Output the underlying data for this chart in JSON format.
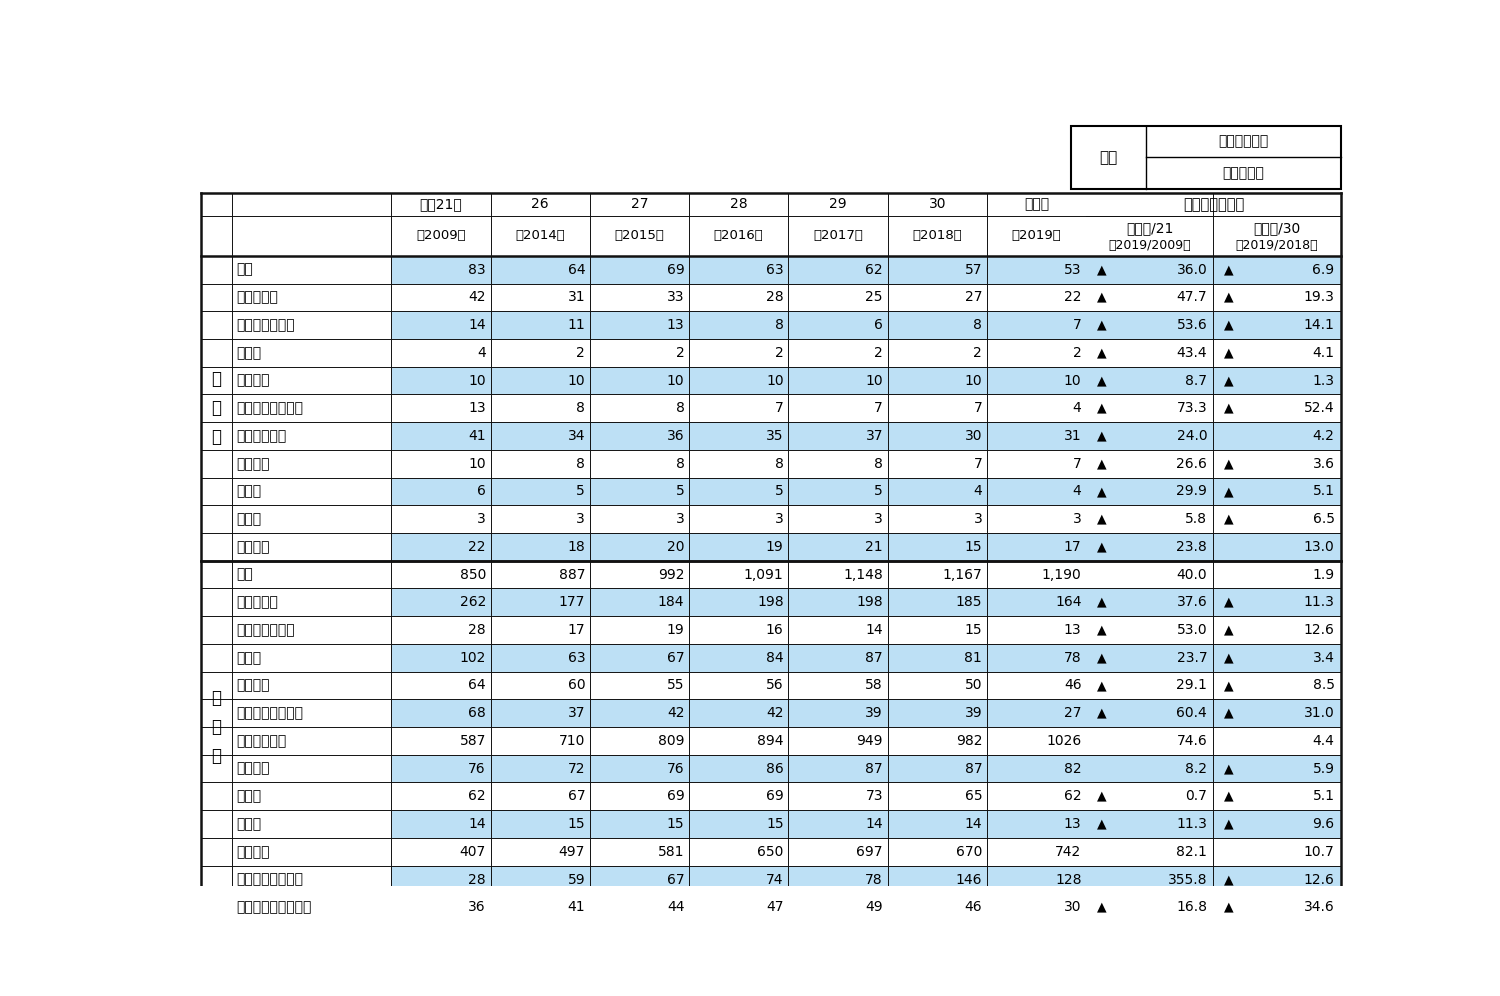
{
  "rows": [
    {
      "label": "合計",
      "section": "生産量",
      "indent": 0,
      "values": [
        "83",
        "64",
        "69",
        "63",
        "62",
        "57",
        "53"
      ],
      "chg1_tri": true,
      "chg1v": "36.0",
      "chg2_tri": true,
      "chg2v": "6.9",
      "bg": "light"
    },
    {
      "label": "内水面漁業",
      "section": "生産量",
      "indent": 0,
      "values": [
        "42",
        "31",
        "33",
        "28",
        "25",
        "27",
        "22"
      ],
      "chg1_tri": true,
      "chg1v": "47.7",
      "chg2_tri": true,
      "chg2v": "19.3",
      "bg": "white"
    },
    {
      "label": "さけ・ます類",
      "section": "生産量",
      "indent": 1,
      "values": [
        "14",
        "11",
        "13",
        "8",
        "6",
        "8",
        "7"
      ],
      "chg1_tri": true,
      "chg1v": "53.6",
      "chg2_tri": true,
      "chg2v": "14.1",
      "bg": "light"
    },
    {
      "label": "あゆ",
      "section": "生産量",
      "indent": 1,
      "values": [
        "4",
        "2",
        "2",
        "2",
        "2",
        "2",
        "2"
      ],
      "chg1_tri": true,
      "chg1v": "43.4",
      "chg2_tri": true,
      "chg2v": "4.1",
      "bg": "white"
    },
    {
      "label": "しじみ",
      "section": "生産量",
      "indent": 1,
      "values": [
        "10",
        "10",
        "10",
        "10",
        "10",
        "10",
        "10"
      ],
      "chg1_tri": true,
      "chg1v": "8.7",
      "chg2_tri": true,
      "chg2v": "1.3",
      "bg": "light"
    },
    {
      "label": "上記以外の魚種",
      "section": "生産量",
      "indent": 1,
      "values": [
        "13",
        "8",
        "8",
        "7",
        "7",
        "7",
        "4"
      ],
      "chg1_tri": true,
      "chg1v": "73.3",
      "chg2_tri": true,
      "chg2v": "52.4",
      "bg": "white"
    },
    {
      "label": "内水面養殖業",
      "section": "生産量",
      "indent": 0,
      "values": [
        "41",
        "34",
        "36",
        "35",
        "37",
        "30",
        "31"
      ],
      "chg1_tri": true,
      "chg1v": "24.0",
      "chg2_tri": false,
      "chg2v": "4.2",
      "bg": "light"
    },
    {
      "label": "ます類",
      "section": "生産量",
      "indent": 1,
      "values": [
        "10",
        "8",
        "8",
        "8",
        "8",
        "7",
        "7"
      ],
      "chg1_tri": true,
      "chg1v": "26.6",
      "chg2_tri": true,
      "chg2v": "3.6",
      "bg": "white"
    },
    {
      "label": "あゆ",
      "section": "生産量",
      "indent": 1,
      "values": [
        "6",
        "5",
        "5",
        "5",
        "5",
        "4",
        "4"
      ],
      "chg1_tri": true,
      "chg1v": "29.9",
      "chg2_tri": true,
      "chg2v": "5.1",
      "bg": "light"
    },
    {
      "label": "こい",
      "section": "生産量",
      "indent": 1,
      "values": [
        "3",
        "3",
        "3",
        "3",
        "3",
        "3",
        "3"
      ],
      "chg1_tri": true,
      "chg1v": "5.8",
      "chg2_tri": true,
      "chg2v": "6.5",
      "bg": "white"
    },
    {
      "label": "うなぎ",
      "section": "生産量",
      "indent": 1,
      "values": [
        "22",
        "18",
        "20",
        "19",
        "21",
        "15",
        "17"
      ],
      "chg1_tri": true,
      "chg1v": "23.8",
      "chg2_tri": false,
      "chg2v": "13.0",
      "bg": "light"
    },
    {
      "label": "合計",
      "section": "産出額",
      "indent": 0,
      "values": [
        "850",
        "887",
        "992",
        "1,091",
        "1,148",
        "1,167",
        "1,190"
      ],
      "chg1_tri": false,
      "chg1v": "40.0",
      "chg2_tri": false,
      "chg2v": "1.9",
      "bg": "white",
      "thick_top": true
    },
    {
      "label": "内水面漁業",
      "section": "産出額",
      "indent": 0,
      "values": [
        "262",
        "177",
        "184",
        "198",
        "198",
        "185",
        "164"
      ],
      "chg1_tri": true,
      "chg1v": "37.6",
      "chg2_tri": true,
      "chg2v": "11.3",
      "bg": "light"
    },
    {
      "label": "さけ・ます類",
      "section": "産出額",
      "indent": 1,
      "values": [
        "28",
        "17",
        "19",
        "16",
        "14",
        "15",
        "13"
      ],
      "chg1_tri": true,
      "chg1v": "53.0",
      "chg2_tri": true,
      "chg2v": "12.6",
      "bg": "white"
    },
    {
      "label": "あゆ",
      "section": "産出額",
      "indent": 1,
      "values": [
        "102",
        "63",
        "67",
        "84",
        "87",
        "81",
        "78"
      ],
      "chg1_tri": true,
      "chg1v": "23.7",
      "chg2_tri": true,
      "chg2v": "3.4",
      "bg": "light"
    },
    {
      "label": "しじみ",
      "section": "産出額",
      "indent": 1,
      "values": [
        "64",
        "60",
        "55",
        "56",
        "58",
        "50",
        "46"
      ],
      "chg1_tri": true,
      "chg1v": "29.1",
      "chg2_tri": true,
      "chg2v": "8.5",
      "bg": "white"
    },
    {
      "label": "上記以外の魚種",
      "section": "産出額",
      "indent": 1,
      "values": [
        "68",
        "37",
        "42",
        "42",
        "39",
        "39",
        "27"
      ],
      "chg1_tri": true,
      "chg1v": "60.4",
      "chg2_tri": true,
      "chg2v": "31.0",
      "bg": "light"
    },
    {
      "label": "内水面養殖業",
      "section": "産出額",
      "indent": 0,
      "values": [
        "587",
        "710",
        "809",
        "894",
        "949",
        "982",
        "1026"
      ],
      "chg1_tri": false,
      "chg1v": "74.6",
      "chg2_tri": false,
      "chg2v": "4.4",
      "bg": "white"
    },
    {
      "label": "ます類",
      "section": "産出額",
      "indent": 1,
      "values": [
        "76",
        "72",
        "76",
        "86",
        "87",
        "87",
        "82"
      ],
      "chg1_tri": false,
      "chg1v": "8.2",
      "chg2_tri": true,
      "chg2v": "5.9",
      "bg": "light"
    },
    {
      "label": "あゆ",
      "section": "産出額",
      "indent": 1,
      "values": [
        "62",
        "67",
        "69",
        "69",
        "73",
        "65",
        "62"
      ],
      "chg1_tri": true,
      "chg1v": "0.7",
      "chg2_tri": true,
      "chg2v": "5.1",
      "bg": "white"
    },
    {
      "label": "こい",
      "section": "産出額",
      "indent": 1,
      "values": [
        "14",
        "15",
        "15",
        "15",
        "14",
        "14",
        "13"
      ],
      "chg1_tri": true,
      "chg1v": "11.3",
      "chg2_tri": true,
      "chg2v": "9.6",
      "bg": "light"
    },
    {
      "label": "うなぎ",
      "section": "産出額",
      "indent": 1,
      "values": [
        "407",
        "497",
        "581",
        "650",
        "697",
        "670",
        "742"
      ],
      "chg1_tri": false,
      "chg1v": "82.1",
      "chg2_tri": false,
      "chg2v": "10.7",
      "bg": "white"
    },
    {
      "label": "上記以外の魚種",
      "section": "産出額",
      "indent": 1,
      "values": [
        "28",
        "59",
        "67",
        "74",
        "78",
        "146",
        "128"
      ],
      "chg1_tri": false,
      "chg1v": "355.8",
      "chg2_tri": true,
      "chg2v": "12.6",
      "bg": "light"
    },
    {
      "label": "（参考）種苗生産額",
      "section": "参考",
      "indent": 0,
      "values": [
        "36",
        "41",
        "44",
        "47",
        "49",
        "46",
        "30"
      ],
      "chg1_tri": true,
      "chg1v": "16.8",
      "chg2_tri": true,
      "chg2v": "34.6",
      "bg": "white",
      "thick_top": true
    }
  ],
  "year_line1": [
    "平成21年",
    "26",
    "27",
    "28",
    "29",
    "30",
    "令和元"
  ],
  "year_line2": [
    "（2009）",
    "（2014）",
    "（2015）",
    "（2016）",
    "（2017）",
    "（2018）",
    "（2019）"
  ],
  "chg_main": "増減率　（％）",
  "chg1_l1": "令和元/21",
  "chg1_l2": "（2019/2009）",
  "chg2_l1": "令和元/30",
  "chg2_l2": "（2019/2018）",
  "unit_label": "単位",
  "unit1": "数量：千トン",
  "unit2": "金額：億円",
  "tri": "▲",
  "sec_sei_label": "生\n産\n量",
  "sec_san_label": "産\n出\n額",
  "bg_light": "#bde0f5",
  "bg_white": "#ffffff",
  "border_dark": "#111111",
  "lw_thick": 1.8,
  "lw_thin": 0.7
}
